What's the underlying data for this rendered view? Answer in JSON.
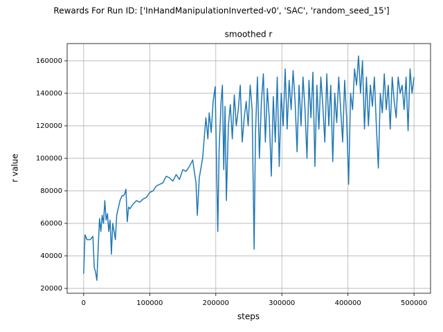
{
  "chart_data": {
    "type": "line",
    "suptitle": "Rewards For Run ID: ['InHandManipulationInverted-v0', 'SAC', 'random_seed_15']",
    "title": "smoothed r",
    "xlabel": "steps",
    "ylabel": "r value",
    "xlim": [
      -25000,
      525000
    ],
    "ylim": [
      17000,
      170600
    ],
    "xticks": [
      0,
      100000,
      200000,
      300000,
      400000,
      500000
    ],
    "yticks": [
      20000,
      40000,
      60000,
      80000,
      100000,
      120000,
      140000,
      160000
    ],
    "grid": true,
    "x": [
      0,
      2000,
      5000,
      10000,
      14000,
      16000,
      18000,
      20000,
      22000,
      24000,
      26000,
      28000,
      30000,
      32000,
      34000,
      36000,
      38000,
      40000,
      42000,
      44000,
      46000,
      48000,
      50000,
      55000,
      58000,
      60000,
      62000,
      64000,
      66000,
      68000,
      70000,
      75000,
      80000,
      85000,
      90000,
      95000,
      100000,
      105000,
      110000,
      115000,
      120000,
      125000,
      130000,
      135000,
      140000,
      145000,
      150000,
      155000,
      160000,
      165000,
      170000,
      172000,
      175000,
      180000,
      185000,
      188000,
      190000,
      193000,
      196000,
      199000,
      201000,
      203000,
      205000,
      208000,
      210000,
      212000,
      214000,
      216000,
      219000,
      222000,
      225000,
      228000,
      231000,
      234000,
      237000,
      240000,
      243000,
      246000,
      249000,
      252000,
      255000,
      258000,
      260000,
      263000,
      266000,
      269000,
      272000,
      275000,
      278000,
      281000,
      284000,
      287000,
      290000,
      293000,
      296000,
      299000,
      302000,
      305000,
      308000,
      311000,
      314000,
      317000,
      320000,
      323000,
      326000,
      329000,
      332000,
      335000,
      338000,
      341000,
      344000,
      347000,
      350000,
      353000,
      356000,
      359000,
      362000,
      365000,
      368000,
      371000,
      374000,
      377000,
      380000,
      383000,
      386000,
      389000,
      392000,
      395000,
      398000,
      401000,
      404000,
      407000,
      410000,
      413000,
      416000,
      419000,
      422000,
      425000,
      428000,
      431000,
      434000,
      437000,
      440000,
      443000,
      446000,
      449000,
      452000,
      455000,
      458000,
      461000,
      464000,
      467000,
      470000,
      473000,
      476000,
      479000,
      482000,
      485000,
      488000,
      491000,
      494000,
      497000,
      500000
    ],
    "series": [
      {
        "name": "smoothed r",
        "color": "#1f77b4",
        "values": [
          29000,
          53000,
          50000,
          50000,
          52000,
          33000,
          30000,
          25000,
          45000,
          63000,
          55000,
          65000,
          60000,
          74000,
          62000,
          66000,
          55000,
          62000,
          41000,
          60000,
          55000,
          50000,
          65000,
          74000,
          77000,
          77000,
          78000,
          81000,
          61000,
          70000,
          69000,
          72000,
          74000,
          73000,
          75000,
          76000,
          79000,
          80000,
          83000,
          84000,
          85000,
          89000,
          88000,
          86000,
          90000,
          87000,
          93000,
          92000,
          95000,
          99000,
          85000,
          65000,
          88000,
          100000,
          125000,
          112000,
          128000,
          116000,
          135000,
          144000,
          100000,
          55000,
          105000,
          135000,
          145000,
          93000,
          132000,
          74000,
          120000,
          133000,
          112000,
          139000,
          120000,
          130000,
          145000,
          110000,
          125000,
          135000,
          120000,
          145000,
          130000,
          44000,
          115000,
          150000,
          100000,
          135000,
          152000,
          110000,
          143000,
          124000,
          89000,
          138000,
          110000,
          150000,
          95000,
          140000,
          120000,
          155000,
          118000,
          148000,
          130000,
          154000,
          135000,
          104000,
          145000,
          120000,
          150000,
          130000,
          100000,
          148000,
          125000,
          153000,
          95000,
          145000,
          118000,
          150000,
          132000,
          110000,
          152000,
          120000,
          145000,
          98000,
          140000,
          122000,
          150000,
          130000,
          110000,
          148000,
          125000,
          84000,
          140000,
          130000,
          155000,
          145000,
          163000,
          140000,
          160000,
          118000,
          150000,
          120000,
          145000,
          132000,
          150000,
          120000,
          94000,
          140000,
          128000,
          152000,
          130000,
          145000,
          118000,
          150000,
          135000,
          125000,
          150000,
          140000,
          145000,
          130000,
          150000,
          117000,
          155000,
          140000,
          150000
        ]
      }
    ]
  }
}
